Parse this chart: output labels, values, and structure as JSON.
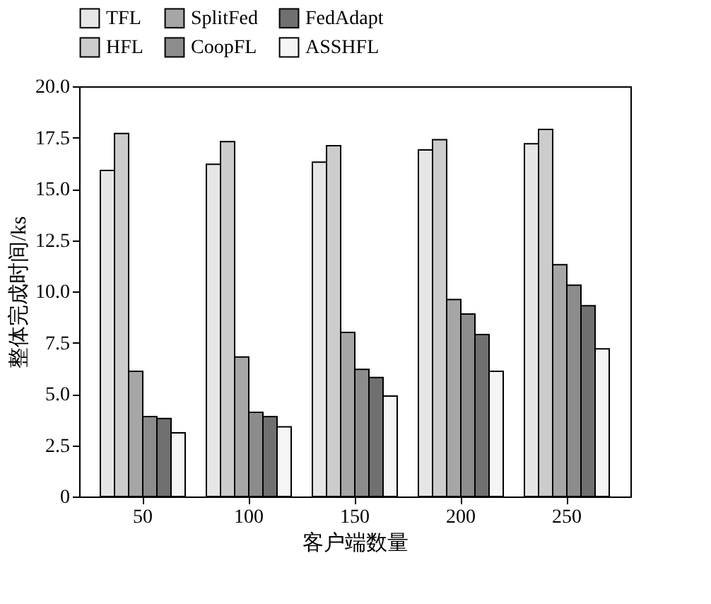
{
  "chart_data": {
    "type": "bar",
    "xlabel": "客户端数量",
    "ylabel": "整体完成时间/ks",
    "categories": [
      "50",
      "100",
      "150",
      "200",
      "250"
    ],
    "series": [
      {
        "name": "TFL",
        "color": "#e6e6e6",
        "values": [
          15.9,
          16.2,
          16.3,
          16.9,
          17.2
        ]
      },
      {
        "name": "HFL",
        "color": "#cccccc",
        "values": [
          17.7,
          17.3,
          17.1,
          17.4,
          17.9
        ]
      },
      {
        "name": "SplitFed",
        "color": "#a6a6a6",
        "values": [
          6.1,
          6.8,
          8.0,
          9.6,
          11.3
        ]
      },
      {
        "name": "CoopFL",
        "color": "#8c8c8c",
        "values": [
          3.9,
          4.1,
          6.2,
          8.9,
          10.3
        ]
      },
      {
        "name": "FedAdapt",
        "color": "#707070",
        "values": [
          3.8,
          3.9,
          5.8,
          7.9,
          9.3
        ]
      },
      {
        "name": "ASSHFL",
        "color": "#f5f5f5",
        "values": [
          3.1,
          3.4,
          4.9,
          6.1,
          7.2
        ]
      }
    ],
    "ylim": [
      0,
      20
    ],
    "yticks": [
      0,
      {
        "value": 2.5,
        "label": "2.5"
      },
      {
        "value": 5,
        "label": "5.0"
      },
      {
        "value": 7.5,
        "label": "7.5"
      },
      {
        "value": 10,
        "label": "10.0"
      },
      {
        "value": 12.5,
        "label": "12.5"
      },
      {
        "value": 15,
        "label": "15.0"
      },
      {
        "value": 17.5,
        "label": "17.5"
      },
      {
        "value": 20,
        "label": "20.0"
      }
    ],
    "grid": false,
    "legend": "top"
  }
}
